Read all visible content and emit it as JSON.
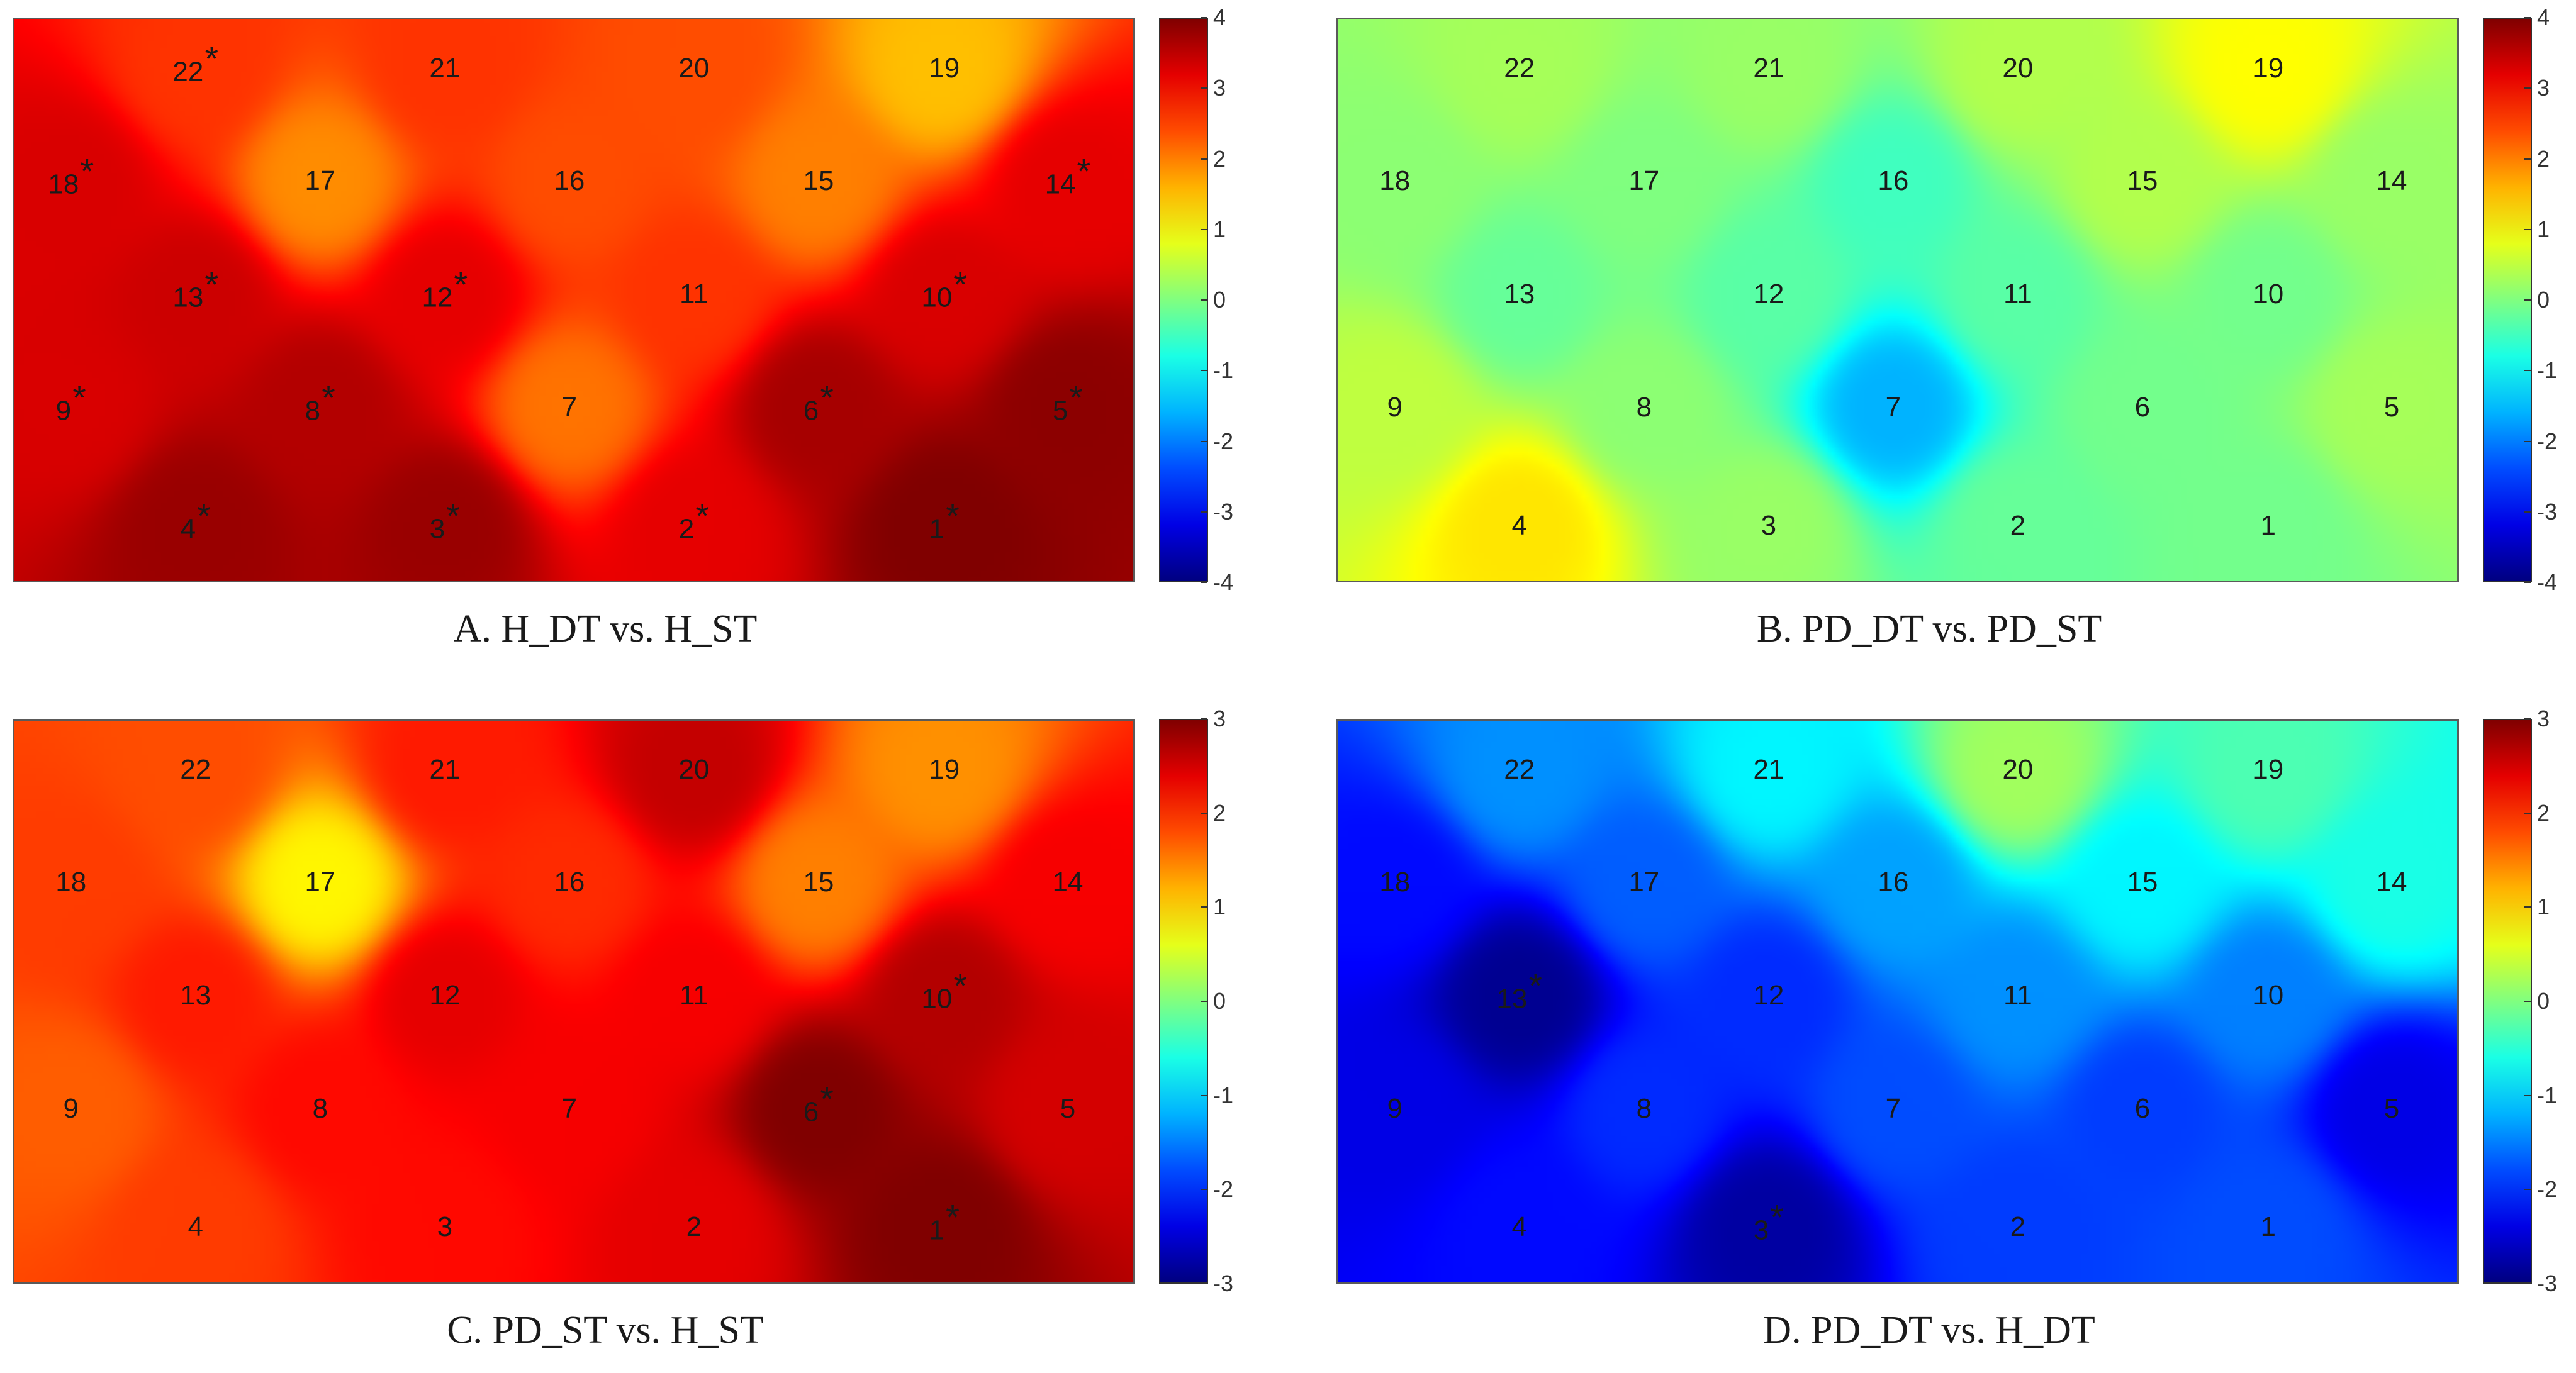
{
  "colorscale": "jet",
  "chart_data": [
    {
      "type": "heatmap",
      "caption": "A. H_DT vs. H_ST",
      "clim": [
        -4,
        4
      ],
      "colorbar_ticks": [
        "4",
        "3",
        "2",
        "1",
        "0",
        "-1",
        "-2",
        "-3",
        "-4"
      ],
      "electrodes": [
        {
          "id": "22",
          "sig": true
        },
        {
          "id": "21",
          "sig": false
        },
        {
          "id": "20",
          "sig": false
        },
        {
          "id": "19",
          "sig": false
        },
        {
          "id": "18",
          "sig": true
        },
        {
          "id": "17",
          "sig": false
        },
        {
          "id": "16",
          "sig": false
        },
        {
          "id": "15",
          "sig": false
        },
        {
          "id": "14",
          "sig": true
        },
        {
          "id": "13",
          "sig": true
        },
        {
          "id": "12",
          "sig": true
        },
        {
          "id": "11",
          "sig": false
        },
        {
          "id": "10",
          "sig": true
        },
        {
          "id": "9",
          "sig": true
        },
        {
          "id": "8",
          "sig": true
        },
        {
          "id": "7",
          "sig": false
        },
        {
          "id": "6",
          "sig": true
        },
        {
          "id": "5",
          "sig": true
        },
        {
          "id": "4",
          "sig": true
        },
        {
          "id": "3",
          "sig": true
        },
        {
          "id": "2",
          "sig": true
        },
        {
          "id": "1",
          "sig": true
        }
      ],
      "values": {
        "22": 2.6,
        "21": 2.6,
        "20": 2.4,
        "19": 1.5,
        "18": 3.3,
        "17": 1.9,
        "16": 2.4,
        "15": 2.0,
        "14": 3.2,
        "13": 3.4,
        "12": 3.2,
        "11": 2.6,
        "10": 3.3,
        "9": 3.3,
        "8": 3.6,
        "7": 2.1,
        "6": 3.7,
        "5": 3.9,
        "4": 3.8,
        "3": 3.8,
        "2": 3.2,
        "1": 4.0
      }
    },
    {
      "type": "heatmap",
      "caption": "B. PD_DT vs. PD_ST",
      "clim": [
        -4,
        4
      ],
      "colorbar_ticks": [
        "4",
        "3",
        "2",
        "1",
        "0",
        "-1",
        "-2",
        "-3",
        "-4"
      ],
      "electrodes": [
        {
          "id": "22",
          "sig": false
        },
        {
          "id": "21",
          "sig": false
        },
        {
          "id": "20",
          "sig": false
        },
        {
          "id": "19",
          "sig": false
        },
        {
          "id": "18",
          "sig": false
        },
        {
          "id": "17",
          "sig": false
        },
        {
          "id": "16",
          "sig": false
        },
        {
          "id": "15",
          "sig": false
        },
        {
          "id": "14",
          "sig": false
        },
        {
          "id": "13",
          "sig": false
        },
        {
          "id": "12",
          "sig": false
        },
        {
          "id": "11",
          "sig": false
        },
        {
          "id": "10",
          "sig": false
        },
        {
          "id": "9",
          "sig": false
        },
        {
          "id": "8",
          "sig": false
        },
        {
          "id": "7",
          "sig": false
        },
        {
          "id": "6",
          "sig": false
        },
        {
          "id": "5",
          "sig": false
        },
        {
          "id": "4",
          "sig": false
        },
        {
          "id": "3",
          "sig": false
        },
        {
          "id": "2",
          "sig": false
        },
        {
          "id": "1",
          "sig": false
        }
      ],
      "values": {
        "22": 0.3,
        "21": 0.2,
        "20": 0.4,
        "19": 1.0,
        "18": 0.1,
        "17": 0.0,
        "16": -0.5,
        "15": 0.4,
        "14": 0.2,
        "13": -0.2,
        "12": -0.3,
        "11": -0.3,
        "10": -0.1,
        "9": 0.5,
        "8": 0.1,
        "7": -1.6,
        "6": -0.1,
        "5": 0.3,
        "4": 1.2,
        "3": 0.2,
        "2": -0.2,
        "1": -0.1
      }
    },
    {
      "type": "heatmap",
      "caption": "C. PD_ST vs. H_ST",
      "clim": [
        -3,
        3
      ],
      "colorbar_ticks": [
        "3",
        "2",
        "1",
        "0",
        "-1",
        "-2",
        "-3"
      ],
      "electrodes": [
        {
          "id": "22",
          "sig": false
        },
        {
          "id": "21",
          "sig": false
        },
        {
          "id": "20",
          "sig": false
        },
        {
          "id": "19",
          "sig": false
        },
        {
          "id": "18",
          "sig": false
        },
        {
          "id": "17",
          "sig": false
        },
        {
          "id": "16",
          "sig": false
        },
        {
          "id": "15",
          "sig": false
        },
        {
          "id": "14",
          "sig": false
        },
        {
          "id": "13",
          "sig": false
        },
        {
          "id": "12",
          "sig": false
        },
        {
          "id": "11",
          "sig": false
        },
        {
          "id": "10",
          "sig": true
        },
        {
          "id": "9",
          "sig": false
        },
        {
          "id": "8",
          "sig": false
        },
        {
          "id": "7",
          "sig": false
        },
        {
          "id": "6",
          "sig": true
        },
        {
          "id": "5",
          "sig": false
        },
        {
          "id": "4",
          "sig": false
        },
        {
          "id": "3",
          "sig": false
        },
        {
          "id": "2",
          "sig": false
        },
        {
          "id": "1",
          "sig": true
        }
      ],
      "values": {
        "22": 1.8,
        "21": 2.1,
        "20": 2.6,
        "19": 1.4,
        "18": 1.9,
        "17": 0.8,
        "16": 2.0,
        "15": 1.5,
        "14": 2.3,
        "13": 2.1,
        "12": 2.4,
        "11": 2.3,
        "10": 2.7,
        "9": 1.7,
        "8": 2.2,
        "7": 2.3,
        "6": 3.0,
        "5": 2.5,
        "4": 1.9,
        "3": 2.2,
        "2": 2.4,
        "1": 3.0
      }
    },
    {
      "type": "heatmap",
      "caption": "D. PD_DT vs. H_DT",
      "clim": [
        -3,
        3
      ],
      "colorbar_ticks": [
        "3",
        "2",
        "1",
        "0",
        "-1",
        "-2",
        "-3"
      ],
      "electrodes": [
        {
          "id": "22",
          "sig": false
        },
        {
          "id": "21",
          "sig": false
        },
        {
          "id": "20",
          "sig": false
        },
        {
          "id": "19",
          "sig": false
        },
        {
          "id": "18",
          "sig": false
        },
        {
          "id": "17",
          "sig": false
        },
        {
          "id": "16",
          "sig": false
        },
        {
          "id": "15",
          "sig": false
        },
        {
          "id": "14",
          "sig": false
        },
        {
          "id": "13",
          "sig": true
        },
        {
          "id": "12",
          "sig": false
        },
        {
          "id": "11",
          "sig": false
        },
        {
          "id": "10",
          "sig": false
        },
        {
          "id": "9",
          "sig": false
        },
        {
          "id": "8",
          "sig": false
        },
        {
          "id": "7",
          "sig": false
        },
        {
          "id": "6",
          "sig": false
        },
        {
          "id": "5",
          "sig": false
        },
        {
          "id": "4",
          "sig": false
        },
        {
          "id": "3",
          "sig": true
        },
        {
          "id": "2",
          "sig": false
        },
        {
          "id": "1",
          "sig": false
        }
      ],
      "values": {
        "22": -1.4,
        "21": -0.8,
        "20": 0.2,
        "19": -0.3,
        "18": -2.2,
        "17": -1.7,
        "16": -1.3,
        "15": -0.8,
        "14": -0.6,
        "13": -2.9,
        "12": -2.0,
        "11": -1.4,
        "10": -1.5,
        "9": -2.4,
        "8": -2.0,
        "7": -1.8,
        "6": -1.9,
        "5": -2.4,
        "4": -2.2,
        "3": -2.8,
        "2": -1.9,
        "1": -1.8
      }
    }
  ]
}
